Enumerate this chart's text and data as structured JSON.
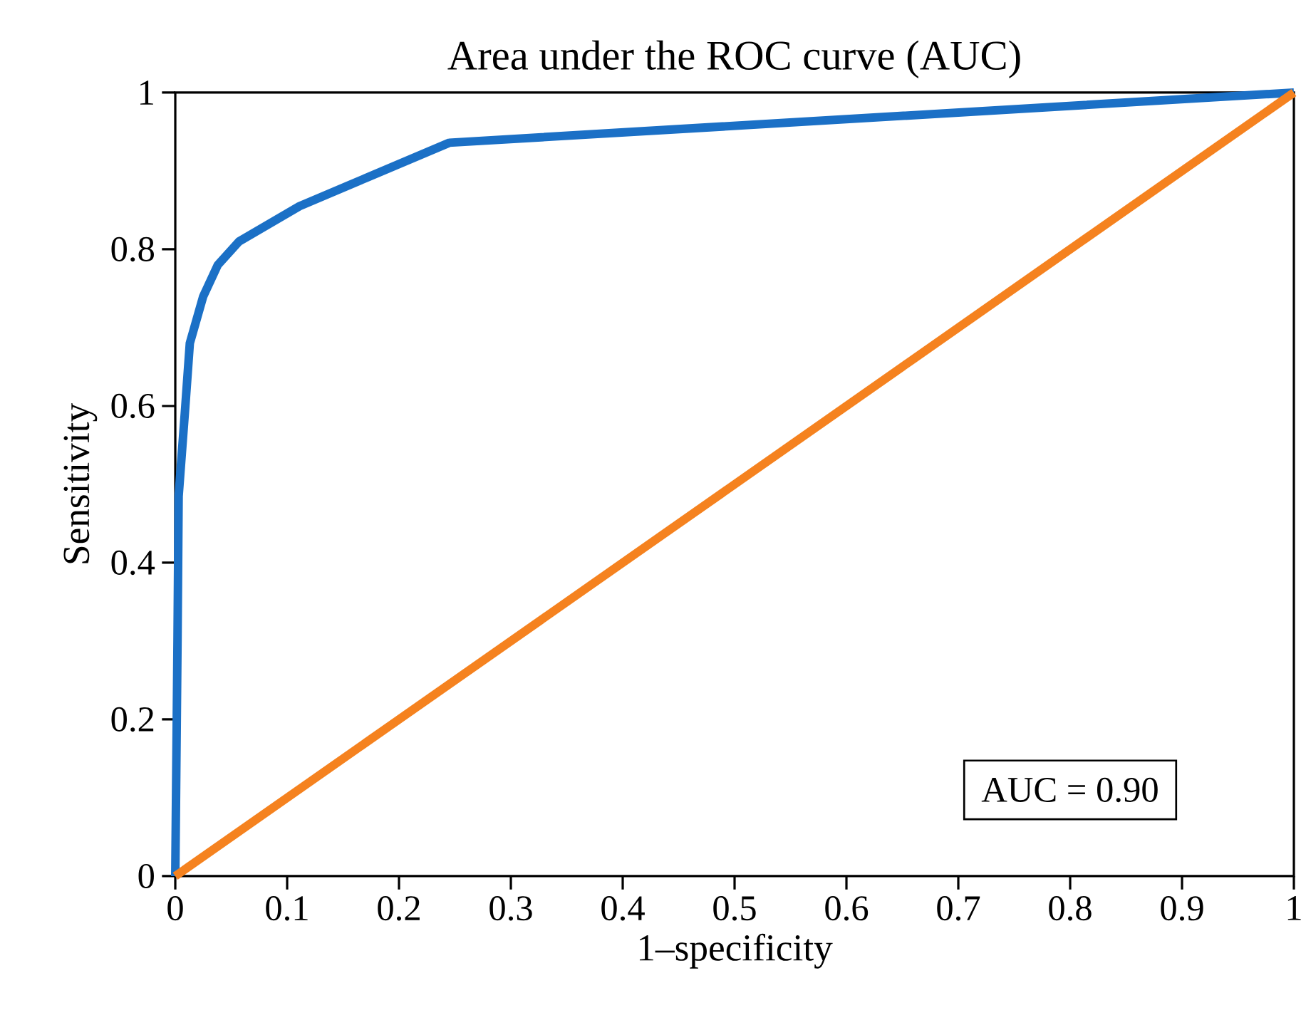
{
  "chart_data": {
    "type": "line",
    "title": "Area under the ROC curve (AUC)",
    "xlabel": "1–specificity",
    "ylabel": "Sensitivity",
    "xlim": [
      0,
      1
    ],
    "ylim": [
      0,
      1
    ],
    "xticks": [
      0,
      0.1,
      0.2,
      0.3,
      0.4,
      0.5,
      0.6,
      0.7,
      0.8,
      0.9,
      1
    ],
    "yticks": [
      0,
      0.2,
      0.4,
      0.6,
      0.8,
      1
    ],
    "series": [
      {
        "color": "#1b70c6",
        "x": [
          0,
          0.002,
          0.003,
          0.009,
          0.013,
          0.025,
          0.038,
          0.057,
          0.111,
          0.245,
          1
        ],
        "values": [
          0,
          0.3,
          0.485,
          0.6,
          0.68,
          0.74,
          0.78,
          0.81,
          0.855,
          0.936,
          1
        ]
      },
      {
        "color": "#f5821f",
        "x": [
          0,
          1
        ],
        "values": [
          0,
          1
        ]
      }
    ],
    "annotations": [
      "AUC = 0.90"
    ]
  }
}
